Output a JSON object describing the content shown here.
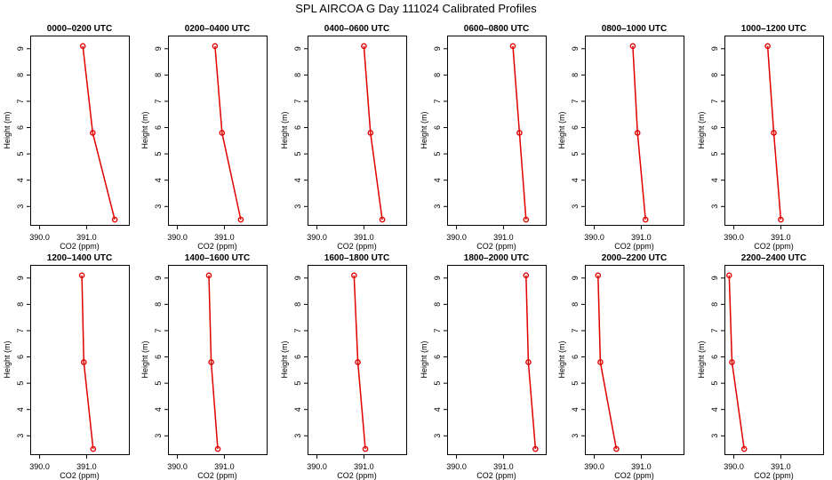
{
  "title": "SPL AIRCOA G  Day 111024  Calibrated Profiles",
  "line_color": "#e00000",
  "chart_data": {
    "type": "line",
    "xlabel": "CO2 (ppm)",
    "ylabel": "Height (m)",
    "xlim": [
      389.8,
      391.9
    ],
    "ylim": [
      2.3,
      9.5
    ],
    "x_ticks": [
      "390.0",
      "391.0"
    ],
    "x_tick_values": [
      390.0,
      391.0
    ],
    "y_ticks": [
      "3",
      "4",
      "5",
      "6",
      "7",
      "8",
      "9"
    ],
    "y_tick_values": [
      3,
      4,
      5,
      6,
      7,
      8,
      9
    ],
    "heights": [
      9.1,
      5.8,
      2.5
    ],
    "panels": [
      {
        "title": "0000–0200 UTC",
        "co2": [
          390.92,
          391.13,
          391.6
        ]
      },
      {
        "title": "0200–0400 UTC",
        "co2": [
          390.8,
          390.95,
          391.35
        ]
      },
      {
        "title": "0400–0600 UTC",
        "co2": [
          391.0,
          391.14,
          391.39
        ]
      },
      {
        "title": "0600–0800 UTC",
        "co2": [
          391.2,
          391.34,
          391.48
        ]
      },
      {
        "title": "0800–1000 UTC",
        "co2": [
          390.82,
          390.92,
          391.09
        ]
      },
      {
        "title": "1000–1200 UTC",
        "co2": [
          390.72,
          390.85,
          391.0
        ]
      },
      {
        "title": "1200–1400 UTC",
        "co2": [
          390.9,
          390.94,
          391.14
        ]
      },
      {
        "title": "1400–1600 UTC",
        "co2": [
          390.67,
          390.72,
          390.86
        ]
      },
      {
        "title": "1600–1800 UTC",
        "co2": [
          390.79,
          390.87,
          391.03
        ]
      },
      {
        "title": "1800–2000 UTC",
        "co2": [
          391.48,
          391.53,
          391.68
        ]
      },
      {
        "title": "2000–2200 UTC",
        "co2": [
          390.08,
          390.13,
          390.47
        ]
      },
      {
        "title": "2200–2400 UTC",
        "co2": [
          389.9,
          389.96,
          390.22
        ]
      }
    ]
  }
}
